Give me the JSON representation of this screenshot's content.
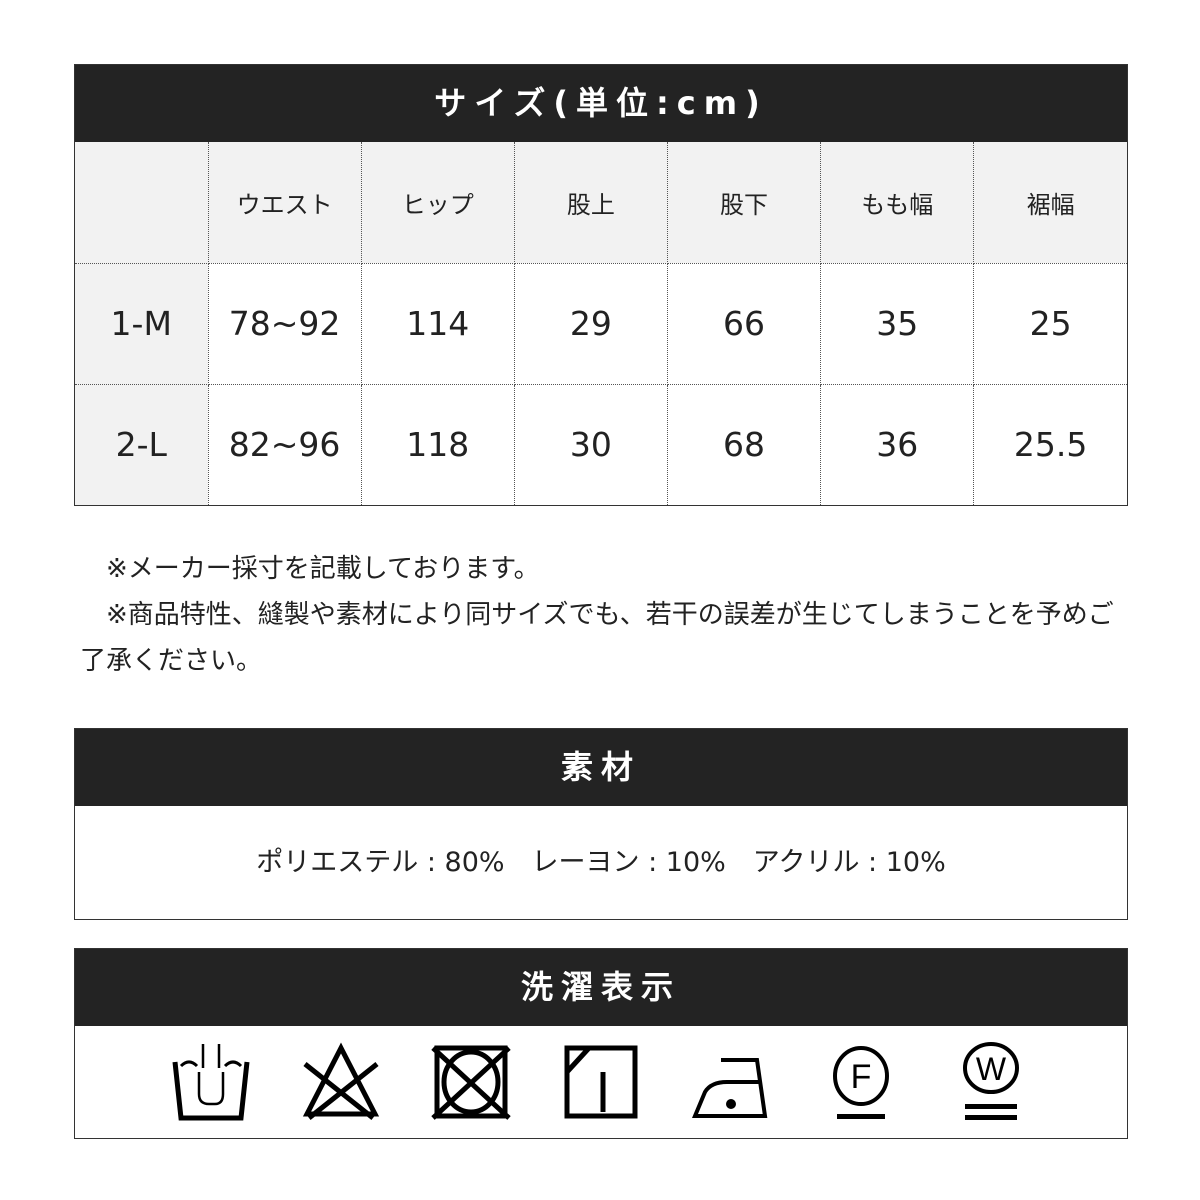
{
  "size_table": {
    "title": "サイズ(単位:cm)",
    "columns": [
      "",
      "ウエスト",
      "ヒップ",
      "股上",
      "股下",
      "もも幅",
      "裾幅"
    ],
    "rows": [
      [
        "1-M",
        "78~92",
        "114",
        "29",
        "66",
        "35",
        "25"
      ],
      [
        "2-L",
        "82~96",
        "118",
        "30",
        "68",
        "36",
        "25.5"
      ]
    ]
  },
  "notes": [
    "※メーカー採寸を記載しております。",
    "※商品特性、縫製や素材により同サイズでも、若干の誤差が生じてしまうことを予めご了承ください。"
  ],
  "material": {
    "title": "素材",
    "text": "ポリエステル : 80%　レーヨン : 10%　アクリル : 10%"
  },
  "care": {
    "title": "洗濯表示",
    "icons": [
      "hand-wash-icon",
      "no-bleach-icon",
      "no-tumble-dry-icon",
      "line-dry-shade-icon",
      "low-iron-icon",
      "dry-clean-f-icon",
      "wet-clean-w-icon"
    ],
    "dry_clean_letter": "F",
    "wet_clean_letter": "W"
  }
}
